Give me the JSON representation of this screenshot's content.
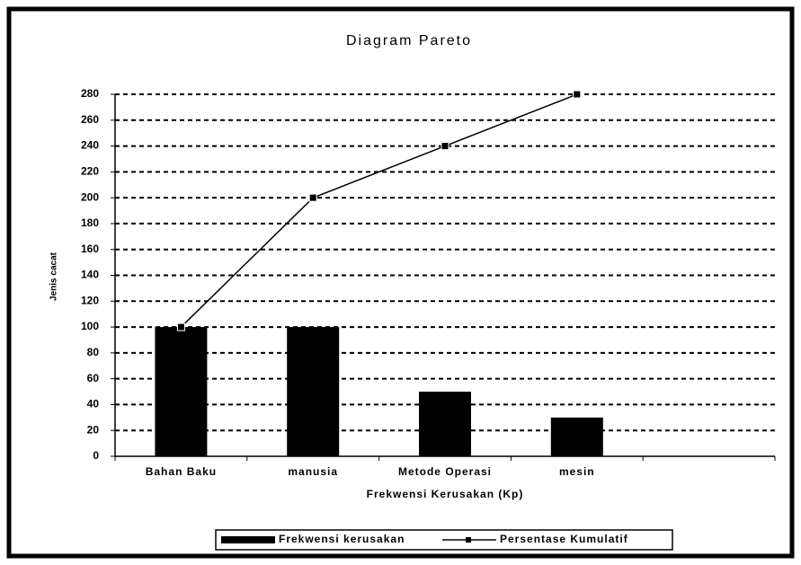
{
  "chart_data": {
    "type": "bar",
    "title": "Diagram Pareto",
    "x_label": "Frekwensi Kerusakan (Kp)",
    "y_label": "Jenis cacat",
    "categories": [
      "Bahan Baku",
      "manusia",
      "Metode Operasi",
      "mesin",
      null
    ],
    "series": [
      {
        "name": "Frekwensi kerusakan",
        "type": "bar",
        "color": "#000000",
        "values": [
          100,
          100,
          50,
          30,
          null
        ]
      },
      {
        "name": "Persentase Kumulatif",
        "type": "line",
        "color": "#000000",
        "values": [
          100,
          200,
          240,
          280,
          null
        ]
      }
    ],
    "ylim": [
      0,
      280
    ],
    "yticks": [
      0,
      20,
      40,
      60,
      80,
      100,
      120,
      140,
      160,
      180,
      200,
      220,
      240,
      260,
      280
    ],
    "grid": true,
    "legend": "bottom"
  }
}
